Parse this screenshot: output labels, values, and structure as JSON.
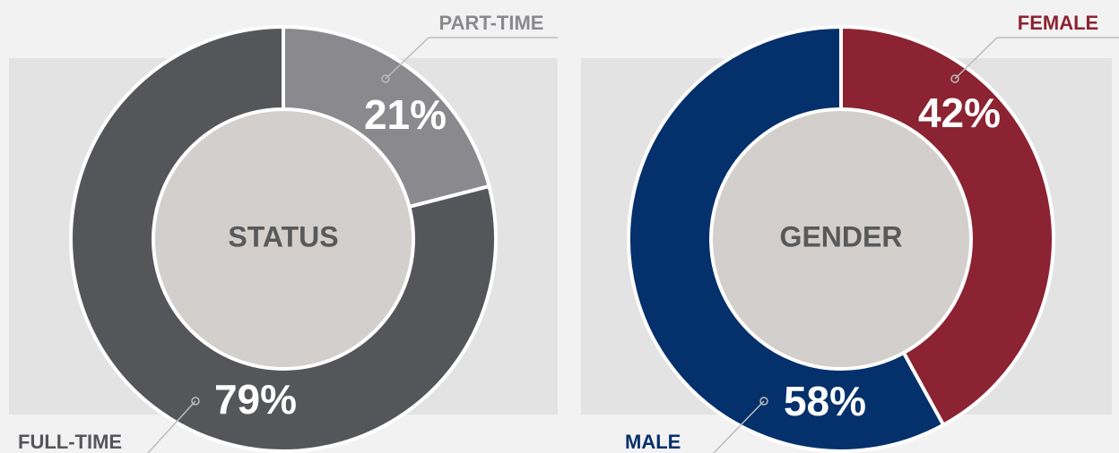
{
  "chart_data": [
    {
      "type": "pie",
      "center_label": "STATUS",
      "categories": [
        "PART-TIME",
        "FULL-TIME"
      ],
      "values": [
        21,
        79
      ],
      "value_labels": [
        "21%",
        "79%"
      ],
      "colors": [
        "#8a898e",
        "#55565a"
      ]
    },
    {
      "type": "pie",
      "center_label": "GENDER",
      "categories": [
        "FEMALE",
        "MALE"
      ],
      "values": [
        42,
        58
      ],
      "value_labels": [
        "42%",
        "58%"
      ],
      "colors": [
        "#8b2332",
        "#04306b"
      ]
    }
  ]
}
